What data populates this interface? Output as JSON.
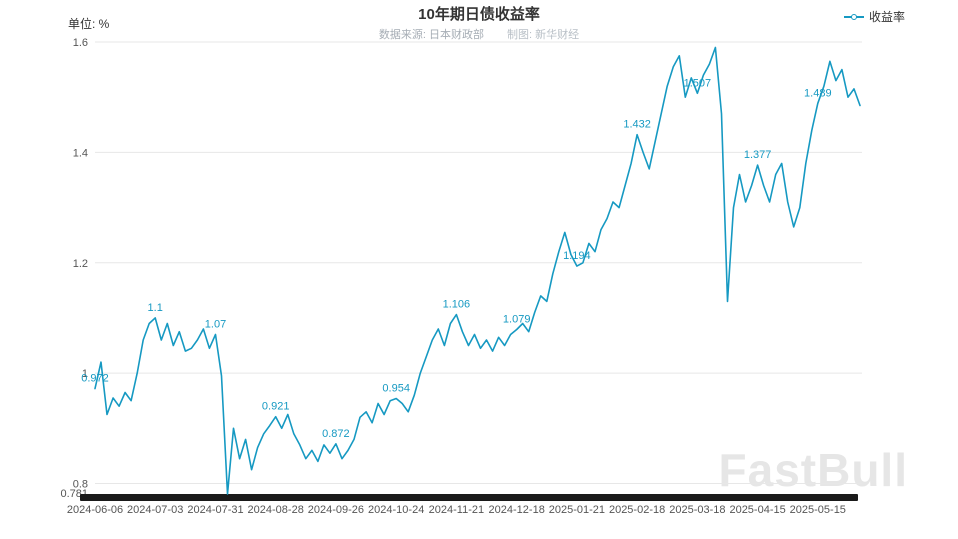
{
  "header": {
    "title": "10年期日债收益率",
    "unit_label": "单位: %",
    "source_label": "数据来源: 日本财政部",
    "credit_label": "制图: 新华财经",
    "legend": {
      "label": "收益率"
    }
  },
  "watermark": "FastBull",
  "chart_data": {
    "type": "line",
    "series_name": "收益率",
    "title": "10年期日债收益率",
    "ylabel": "单位: %",
    "color": "#1699c2",
    "grid": true,
    "legend_position": "top-right",
    "ylim": [
      0.781,
      1.6
    ],
    "y_ticks": [
      0.8,
      1,
      1.2,
      1.4,
      1.6
    ],
    "y_tick_labels": [
      "0.8",
      "1",
      "1.2",
      "1.4",
      "1.6"
    ],
    "y_min_label": "0.781",
    "x_tick_indices": [
      0,
      10,
      20,
      30,
      40,
      50,
      60,
      70,
      80,
      90,
      100,
      110,
      120
    ],
    "x_tick_labels": [
      "2024-06-06",
      "2024-07-03",
      "2024-07-31",
      "2024-08-28",
      "2024-09-26",
      "2024-10-24",
      "2024-11-21",
      "2024-12-18",
      "2025-01-21",
      "2025-02-18",
      "2025-03-18",
      "2025-04-15",
      "2025-05-15"
    ],
    "point_labels": [
      "0.972",
      "1.1",
      "1.07",
      "0.921",
      "0.872",
      "0.954",
      "1.106",
      "1.079",
      "1.194",
      "1.432",
      "1.507",
      "1.377",
      "1.489"
    ],
    "labeled_points": [
      {
        "date": "2024-06-06",
        "value": 0.972
      },
      {
        "date": "2024-07-03",
        "value": 1.1
      },
      {
        "date": "2024-07-31",
        "value": 1.07
      },
      {
        "date": "2024-08-28",
        "value": 0.921
      },
      {
        "date": "2024-09-26",
        "value": 0.872
      },
      {
        "date": "2024-10-24",
        "value": 0.954
      },
      {
        "date": "2024-11-21",
        "value": 1.106
      },
      {
        "date": "2024-12-18",
        "value": 1.079
      },
      {
        "date": "2025-01-21",
        "value": 1.194
      },
      {
        "date": "2025-02-18",
        "value": 1.432
      },
      {
        "date": "2025-03-18",
        "value": 1.507
      },
      {
        "date": "2025-04-15",
        "value": 1.377
      },
      {
        "date": "2025-05-15",
        "value": 1.489
      }
    ],
    "values": [
      0.972,
      1.02,
      0.925,
      0.955,
      0.94,
      0.965,
      0.95,
      1.0,
      1.06,
      1.09,
      1.1,
      1.06,
      1.09,
      1.05,
      1.075,
      1.04,
      1.045,
      1.06,
      1.08,
      1.045,
      1.07,
      0.995,
      0.781,
      0.9,
      0.845,
      0.88,
      0.825,
      0.865,
      0.89,
      0.905,
      0.921,
      0.9,
      0.925,
      0.89,
      0.87,
      0.845,
      0.86,
      0.84,
      0.87,
      0.855,
      0.872,
      0.845,
      0.86,
      0.88,
      0.92,
      0.93,
      0.91,
      0.945,
      0.925,
      0.95,
      0.954,
      0.945,
      0.93,
      0.96,
      1.0,
      1.03,
      1.06,
      1.08,
      1.05,
      1.09,
      1.106,
      1.075,
      1.05,
      1.07,
      1.045,
      1.06,
      1.04,
      1.065,
      1.05,
      1.07,
      1.079,
      1.09,
      1.075,
      1.11,
      1.14,
      1.13,
      1.18,
      1.22,
      1.255,
      1.215,
      1.194,
      1.2,
      1.235,
      1.22,
      1.26,
      1.28,
      1.31,
      1.3,
      1.34,
      1.38,
      1.432,
      1.4,
      1.37,
      1.42,
      1.47,
      1.52,
      1.555,
      1.575,
      1.5,
      1.535,
      1.507,
      1.54,
      1.56,
      1.59,
      1.47,
      1.13,
      1.3,
      1.36,
      1.31,
      1.34,
      1.377,
      1.34,
      1.31,
      1.36,
      1.38,
      1.31,
      1.265,
      1.3,
      1.38,
      1.44,
      1.489,
      1.52,
      1.565,
      1.53,
      1.55,
      1.5,
      1.515,
      1.485
    ]
  }
}
